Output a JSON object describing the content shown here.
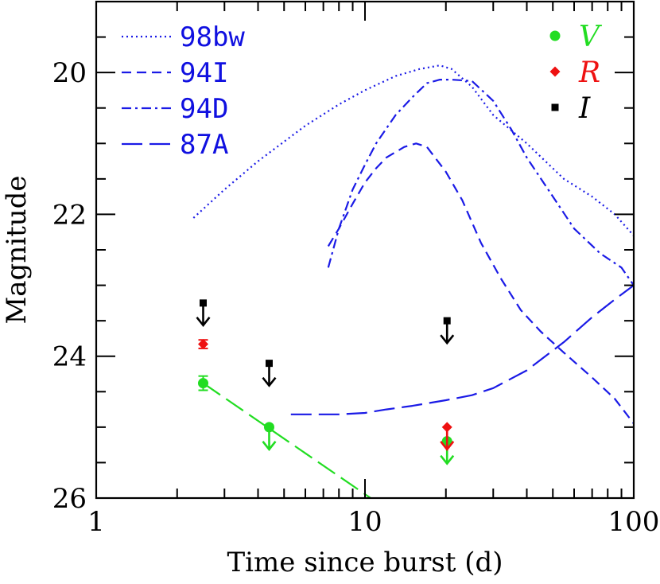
{
  "chart_data": {
    "type": "line",
    "xlabel": "Time since burst (d)",
    "ylabel": "Magnitude",
    "xscale": "log",
    "xlim": [
      1,
      100
    ],
    "ylim": [
      26,
      19
    ],
    "y_inverted": true,
    "x_ticks": [
      1,
      10,
      100
    ],
    "x_tick_labels": [
      "1",
      "10",
      "100"
    ],
    "y_ticks": [
      20,
      22,
      24,
      26
    ],
    "y_tick_labels": [
      "20",
      "22",
      "24",
      "26"
    ],
    "grid": false,
    "legend_placement": "top-left and top-right",
    "templates": [
      {
        "name": "98bw",
        "style": "dotted",
        "color": "#1a1ae6",
        "x": [
          2.3,
          3,
          4,
          6,
          8,
          10,
          13,
          16,
          19,
          21,
          25,
          30,
          40,
          55,
          70,
          85,
          100
        ],
        "y": [
          22.05,
          21.65,
          21.25,
          20.75,
          20.45,
          20.25,
          20.05,
          19.95,
          19.9,
          19.95,
          20.2,
          20.6,
          21.0,
          21.5,
          21.75,
          22.0,
          22.3
        ]
      },
      {
        "name": "94I",
        "style": "dashed",
        "color": "#1a1ae6",
        "x": [
          7.3,
          8,
          9,
          10,
          11,
          12,
          14,
          15.5,
          17,
          20,
          23,
          27,
          32,
          38,
          45,
          55,
          70,
          85,
          100
        ],
        "y": [
          22.45,
          22.2,
          21.85,
          21.55,
          21.35,
          21.2,
          21.05,
          21.0,
          21.05,
          21.4,
          21.8,
          22.4,
          22.9,
          23.35,
          23.65,
          23.95,
          24.3,
          24.6,
          24.95
        ]
      },
      {
        "name": "94D",
        "style": "dashdot",
        "color": "#1a1ae6",
        "x": [
          7.3,
          8,
          9,
          10,
          11,
          13,
          15,
          17,
          19,
          21,
          25,
          30,
          35,
          40,
          50,
          60,
          75,
          90,
          100
        ],
        "y": [
          22.75,
          22.2,
          21.65,
          21.3,
          21.0,
          20.6,
          20.35,
          20.15,
          20.1,
          20.1,
          20.12,
          20.4,
          20.8,
          21.2,
          21.75,
          22.2,
          22.55,
          22.75,
          23.0
        ]
      },
      {
        "name": "87A",
        "style": "long-dash",
        "color": "#1a1ae6",
        "x": [
          5.3,
          6,
          7,
          8,
          10,
          12,
          15,
          20,
          25,
          30,
          40,
          55,
          70,
          85,
          100
        ],
        "y": [
          24.82,
          24.82,
          24.82,
          24.82,
          24.8,
          24.75,
          24.7,
          24.62,
          24.55,
          24.45,
          24.2,
          23.8,
          23.45,
          23.2,
          23.0
        ]
      }
    ],
    "observations": [
      {
        "band": "V",
        "color": "#22dd22",
        "marker": "circle",
        "points": [
          {
            "x": 2.5,
            "y": 24.38,
            "err": 0.1,
            "upper_limit": false
          },
          {
            "x": 4.4,
            "y": 25.0,
            "upper_limit": true
          },
          {
            "x": 20.2,
            "y": 25.2,
            "upper_limit": true
          }
        ]
      },
      {
        "band": "R",
        "color": "#ee1111",
        "marker": "diamond",
        "points": [
          {
            "x": 2.5,
            "y": 23.83,
            "err": 0.06,
            "upper_limit": false
          },
          {
            "x": 20.2,
            "y": 25.0,
            "upper_limit": true
          }
        ]
      },
      {
        "band": "I",
        "color": "#000000",
        "marker": "square",
        "points": [
          {
            "x": 2.5,
            "y": 23.25,
            "upper_limit": true
          },
          {
            "x": 4.4,
            "y": 24.1,
            "upper_limit": true
          },
          {
            "x": 20.2,
            "y": 23.5,
            "upper_limit": true
          }
        ]
      }
    ],
    "fit_line": {
      "color": "#22dd22",
      "style": "long-dash",
      "x": [
        2.5,
        10.5
      ],
      "y": [
        24.38,
        26.0
      ]
    },
    "legend_left": [
      {
        "label": "98bw",
        "style": "dotted"
      },
      {
        "label": "94I",
        "style": "dashed"
      },
      {
        "label": "94D",
        "style": "dashdot"
      },
      {
        "label": "87A",
        "style": "long-dash"
      }
    ],
    "legend_right": [
      {
        "label": "V",
        "color": "#22dd22",
        "marker": "circle"
      },
      {
        "label": "R",
        "color": "#ee1111",
        "marker": "diamond"
      },
      {
        "label": "I",
        "color": "#000000",
        "marker": "square"
      }
    ]
  }
}
